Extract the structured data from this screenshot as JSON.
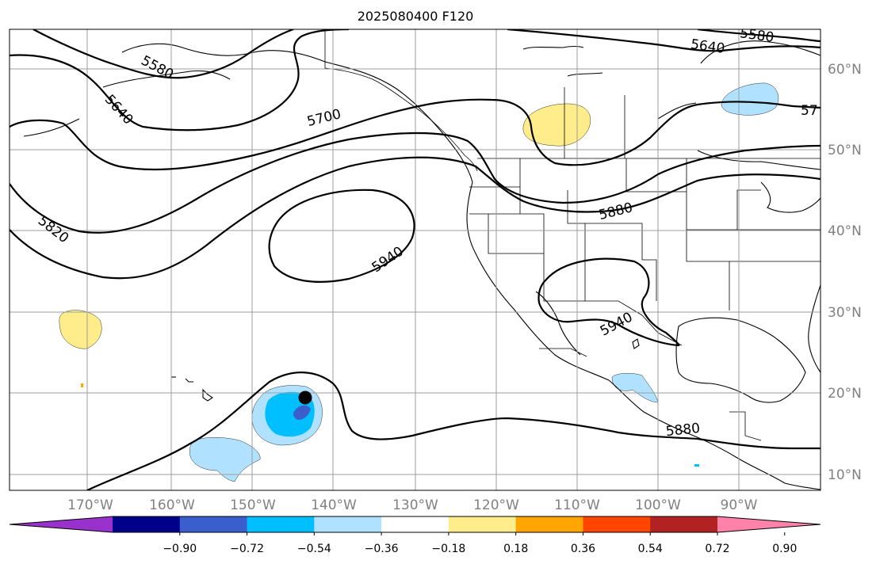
{
  "title": "2025080400 F120",
  "lon_labels": [
    "170°W",
    "160°W",
    "150°W",
    "140°W",
    "130°W",
    "120°W",
    "110°W",
    "100°W",
    "90°W"
  ],
  "lat_labels": [
    "60°N",
    "50°N",
    "40°N",
    "30°N",
    "20°N",
    "10°N"
  ],
  "contour_labels": [
    "5580",
    "5640",
    "5700",
    "5820",
    "5880",
    "5940"
  ],
  "colorbar": {
    "colors": [
      "#9932cc",
      "#00008b",
      "#3a5fcd",
      "#00bfff",
      "#b0e2ff",
      "#ffffff",
      "#ffec8b",
      "#ffa500",
      "#ff4500",
      "#b22222",
      "#ff82ab"
    ],
    "tick_labels": [
      "−0.90",
      "−0.72",
      "−0.54",
      "−0.36",
      "−0.18",
      "0.18",
      "0.36",
      "0.54",
      "0.72",
      "0.90"
    ]
  },
  "chart_data": {
    "type": "contour map",
    "title": "2025080400 F120",
    "contour_levels": [
      5580,
      5640,
      5700,
      5820,
      5880,
      5940
    ],
    "projection_lon_range": [
      "178°W",
      "80°W"
    ],
    "projection_lat_range": [
      "8°N",
      "65°N"
    ],
    "marker": {
      "lon": -143.5,
      "lat": 19.5
    },
    "grid": true
  }
}
